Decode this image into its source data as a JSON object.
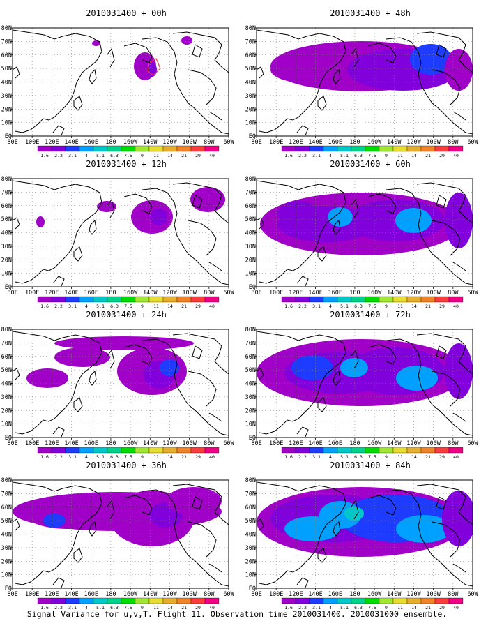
{
  "figure": {
    "caption": "Signal Variance for u,v,T. Flight 11. Observation time 2010031400. 2010031000 ensemble."
  },
  "map": {
    "x_ticks": [
      "80E",
      "100E",
      "120E",
      "140E",
      "160E",
      "180",
      "160W",
      "140W",
      "120W",
      "100W",
      "80W",
      "60W"
    ],
    "y_ticks": [
      "80N",
      "70N",
      "60N",
      "50N",
      "40N",
      "30N",
      "20N",
      "10N",
      "EQ"
    ],
    "projection": "lat-lon",
    "lon_range": [
      "80E",
      "60W"
    ],
    "lat_range": [
      "EQ",
      "80N"
    ],
    "grid": "dotted",
    "coastline_color": "#000000"
  },
  "colorbar": {
    "levels": [
      "1.6",
      "2.2",
      "3.1",
      "4",
      "5.1",
      "6.3",
      "7.5",
      "9",
      "11",
      "14",
      "21",
      "29",
      "40"
    ],
    "colors": [
      "#a000c8",
      "#8200dc",
      "#1e3cff",
      "#00a0ff",
      "#00c8c8",
      "#00d28c",
      "#00dc00",
      "#a0e632",
      "#e6dc32",
      "#e6af2d",
      "#f08228",
      "#fa3c3c",
      "#f00082"
    ]
  },
  "panels": [
    {
      "title": "2010031400 + 00h",
      "forecast_hour": 0
    },
    {
      "title": "2010031400 + 48h",
      "forecast_hour": 48
    },
    {
      "title": "2010031400 + 12h",
      "forecast_hour": 12
    },
    {
      "title": "2010031400 + 60h",
      "forecast_hour": 60
    },
    {
      "title": "2010031400 + 24h",
      "forecast_hour": 24
    },
    {
      "title": "2010031400 + 72h",
      "forecast_hour": 72
    },
    {
      "title": "2010031400 + 36h",
      "forecast_hour": 36
    },
    {
      "title": "2010031400 + 84h",
      "forecast_hour": 84
    }
  ]
}
